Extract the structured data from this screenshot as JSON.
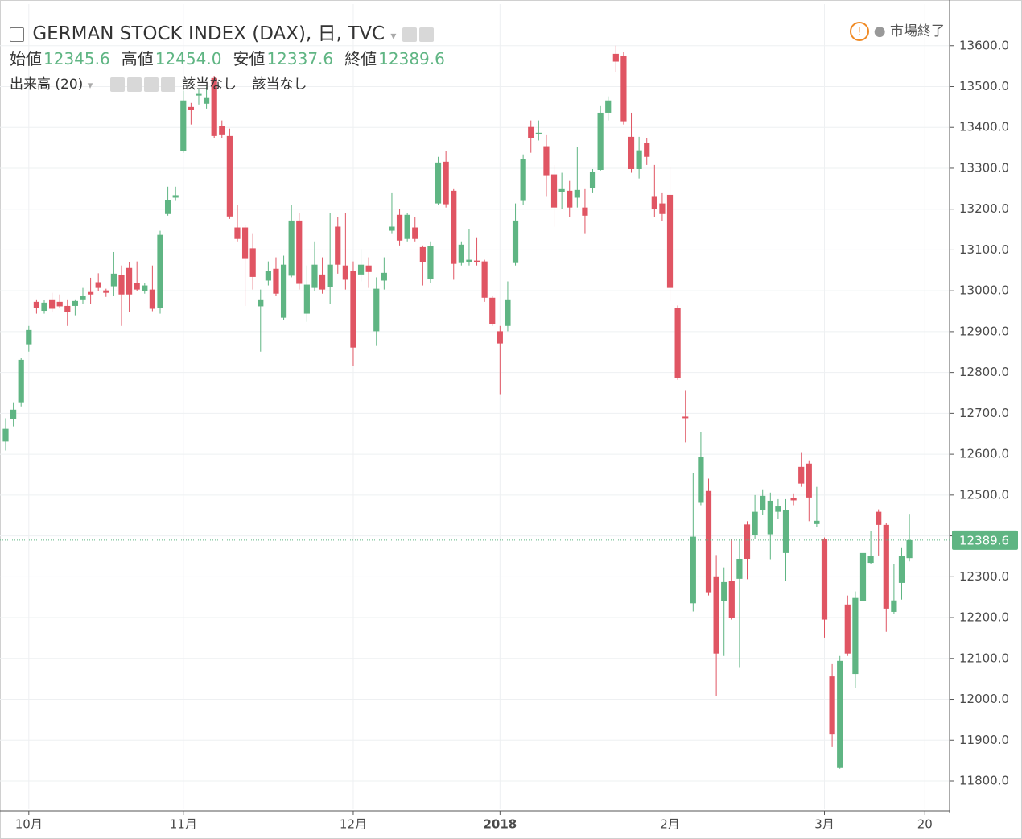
{
  "chart_data": {
    "type": "candlestick",
    "title": "GERMAN STOCK INDEX (DAX), 日, TVC",
    "status": "市場終了",
    "legend_names": [
      "始値",
      "高値",
      "安値",
      "終値"
    ],
    "legend_values": [
      {
        "value": 12345.6,
        "label": "12345.6"
      },
      {
        "value": 12454.0,
        "label": "12454.0"
      },
      {
        "value": 12337.6,
        "label": "12337.6"
      },
      {
        "value": 12389.6,
        "label": "12389.6"
      }
    ],
    "indicator": "出来高 (20)",
    "indicator_values": [
      "該当なし",
      "該当なし"
    ],
    "up_color": "#5fb583",
    "down_color": "#e05563",
    "grid": true,
    "open": [
      12631,
      12685,
      12727,
      12869,
      12973,
      12951,
      12979,
      12973,
      12963,
      12963,
      12979,
      12997,
      13021,
      13001,
      13011,
      13038,
      13056,
      13019,
      12999,
      13003,
      12958,
      13188,
      13228,
      13342,
      13450,
      13478,
      13458,
      13521,
      13403,
      13379,
      13155,
      13155,
      13104,
      12962,
      13025,
      13054,
      12934,
      13037,
      13172,
      12944,
      13007,
      13040,
      13009,
      13157,
      13062,
      13048,
      13040,
      13062,
      12901,
      13025,
      13147,
      13186,
      13127,
      13155,
      13107,
      13029,
      13214,
      13316,
      13245,
      13068,
      13070,
      13074,
      13072,
      12983,
      12901,
      12914,
      13068,
      13220,
      13401,
      13385,
      13354,
      13285,
      13241,
      13245,
      13228,
      13204,
      13251,
      13296,
      13436,
      13580,
      13574,
      13377,
      13298,
      13362,
      13230,
      13214,
      13235,
      12958,
      12692,
      12235,
      12481,
      12510,
      12301,
      12240,
      12289,
      12295,
      12428,
      12402,
      12463,
      12404,
      12459,
      12358,
      12493,
      12569,
      12577,
      12429,
      12392,
      12056,
      11832,
      12232,
      12062,
      12240,
      12334,
      12459,
      12427,
      12214,
      12285,
      12345.6
    ],
    "high": [
      12688,
      12727,
      12835,
      12914,
      12979,
      12977,
      12995,
      12991,
      12979,
      12979,
      13007,
      13032,
      13043,
      13005,
      13095,
      13062,
      13070,
      13072,
      13019,
      13062,
      13147,
      13255,
      13255,
      13490,
      13460,
      13496,
      13500,
      13525,
      13417,
      13397,
      13210,
      13161,
      13141,
      13003,
      13072,
      13082,
      13086,
      13210,
      13190,
      13062,
      13121,
      13082,
      13190,
      13180,
      13190,
      13072,
      13102,
      13082,
      13033,
      13082,
      13239,
      13200,
      13190,
      13180,
      13111,
      13121,
      13328,
      13342,
      13249,
      13121,
      13151,
      13131,
      13076,
      12987,
      12914,
      13023,
      13214,
      13334,
      13417,
      13417,
      13381,
      13308,
      13289,
      13269,
      13352,
      13249,
      13298,
      13452,
      13476,
      13600,
      13584,
      13436,
      13377,
      13373,
      13308,
      13239,
      13302,
      12964,
      12757,
      12554,
      12654,
      12540,
      12353,
      12323,
      12392,
      12392,
      12436,
      12500,
      12514,
      12506,
      12490,
      12490,
      12504,
      12605,
      12585,
      12520,
      12396,
      12086,
      12106,
      12254,
      12264,
      12382,
      12411,
      12465,
      12431,
      12332,
      12372,
      12454.0
    ],
    "low": [
      12609,
      12668,
      12717,
      12851,
      12944,
      12944,
      12948,
      12958,
      12914,
      12940,
      12967,
      12967,
      12999,
      12985,
      12987,
      12914,
      12948,
      12999,
      12993,
      12950,
      12944,
      13184,
      13220,
      13338,
      13407,
      13456,
      13446,
      13373,
      13373,
      13176,
      13121,
      12963,
      13003,
      12851,
      13013,
      12987,
      12928,
      13033,
      13003,
      12924,
      12999,
      12993,
      12967,
      13042,
      13003,
      12816,
      13023,
      13007,
      12865,
      13003,
      13141,
      13111,
      13121,
      13121,
      13013,
      13019,
      13210,
      13204,
      13027,
      13062,
      13062,
      13062,
      12973,
      12914,
      12747,
      12901,
      13062,
      13210,
      13338,
      13368,
      13230,
      13157,
      13200,
      13180,
      13204,
      13141,
      13239,
      13294,
      13417,
      13535,
      13407,
      13289,
      13275,
      13308,
      13180,
      13170,
      12973,
      12782,
      12629,
      12215,
      12475,
      12254,
      12007,
      12106,
      12195,
      12077,
      12294,
      12392,
      12451,
      12343,
      12441,
      12290,
      12475,
      12520,
      12436,
      12421,
      12151,
      11883,
      11830,
      12106,
      12027,
      12234,
      12332,
      12352,
      12165,
      12210,
      12244,
      12337.6
    ],
    "close": [
      12662,
      12709,
      12831,
      12904,
      12957,
      12971,
      12956,
      12962,
      12948,
      12975,
      12987,
      12991,
      13007,
      12995,
      13042,
      12991,
      12991,
      13003,
      13013,
      12956,
      13137,
      13222,
      13234,
      13466,
      13442,
      13482,
      13472,
      13379,
      13381,
      13182,
      13127,
      13078,
      13034,
      12979,
      13048,
      12993,
      13064,
      13172,
      13017,
      13015,
      13064,
      13003,
      13064,
      13064,
      13027,
      12861,
      13064,
      13046,
      13005,
      13044,
      13157,
      13123,
      13186,
      13127,
      13070,
      13110,
      13314,
      13212,
      13066,
      13113,
      13076,
      13070,
      12983,
      12918,
      12871,
      12979,
      13172,
      13322,
      13373,
      13387,
      13283,
      13204,
      13249,
      13204,
      13247,
      13184,
      13291,
      13436,
      13466,
      13561,
      13415,
      13298,
      13344,
      13328,
      13200,
      13188,
      13007,
      12786,
      12688,
      12398,
      12593,
      12262,
      12112,
      12287,
      12199,
      12344,
      12344,
      12459,
      12498,
      12486,
      12472,
      12463,
      12487,
      12528,
      12494,
      12437,
      12195,
      11914,
      12094,
      12112,
      12248,
      12358,
      12350,
      12427,
      12222,
      12242,
      12350,
      12389.6
    ],
    "last_price": {
      "value": 12389.6,
      "label": "12389.6"
    },
    "xlim": [
      -0.73,
      122.2
    ],
    "xticks": [
      {
        "value": 3,
        "label": "10月"
      },
      {
        "value": 23,
        "label": "11月"
      },
      {
        "value": 45,
        "label": "12月"
      },
      {
        "value": 64,
        "label": "2018"
      },
      {
        "value": 86,
        "label": "2月"
      },
      {
        "value": 106,
        "label": "3月"
      },
      {
        "value": 119,
        "label": "20"
      }
    ],
    "ylim": [
      11731,
      13702
    ],
    "yticks": [
      {
        "value": 11800,
        "label": "11800.0"
      },
      {
        "value": 11900,
        "label": "11900.0"
      },
      {
        "value": 12000,
        "label": "12000.0"
      },
      {
        "value": 12100,
        "label": "12100.0"
      },
      {
        "value": 12200,
        "label": "12200.0"
      },
      {
        "value": 12300,
        "label": "12300.0"
      },
      {
        "value": 12400,
        "label": "12400.0"
      },
      {
        "value": 12500,
        "label": "12500.0"
      },
      {
        "value": 12600,
        "label": "12600.0"
      },
      {
        "value": 12700,
        "label": "12700.0"
      },
      {
        "value": 12800,
        "label": "12800.0"
      },
      {
        "value": 12900,
        "label": "12900.0"
      },
      {
        "value": 13000,
        "label": "13000.0"
      },
      {
        "value": 13100,
        "label": "13100.0"
      },
      {
        "value": 13200,
        "label": "13200.0"
      },
      {
        "value": 13300,
        "label": "13300.0"
      },
      {
        "value": 13400,
        "label": "13400.0"
      },
      {
        "value": 13500,
        "label": "13500.0"
      },
      {
        "value": 13600,
        "label": "13600.0"
      }
    ]
  }
}
